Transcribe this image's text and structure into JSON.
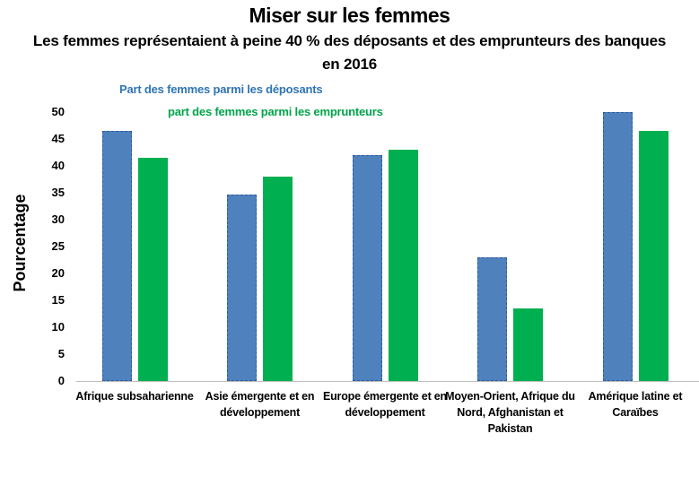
{
  "page": {
    "title": "Miser sur les femmes",
    "subtitle": "Les femmes représentaient  à peine 40 % des déposants et des emprunteurs des banques en 2016"
  },
  "legend": {
    "items": [
      {
        "label": "Part des femmes parmi les déposants",
        "color": "#2E74B5"
      },
      {
        "label": "part des femmes parmi les emprunteurs",
        "color": "#00A44A"
      }
    ]
  },
  "chart_data": {
    "type": "bar",
    "title": "Miser sur les femmes",
    "subtitle": "Les femmes représentaient à peine 40 % des déposants et des emprunteurs des banques en 2016",
    "ylabel": "Pourcentage",
    "xlabel": "",
    "ylim": [
      0,
      50
    ],
    "yticks": [
      0,
      5,
      10,
      15,
      20,
      25,
      30,
      35,
      40,
      45,
      50
    ],
    "grid": false,
    "legend_position": "top-left",
    "axis_line_color": "#BFBFBF",
    "categories": [
      "Afrique subsaharienne",
      "Asie émergente et en développement",
      "Europe émergente et en développement",
      "Moyen-Orient, Afrique du Nord, Afghanistan et Pakistan",
      "Amérique latine et Caraïbes"
    ],
    "series": [
      {
        "name": "Part des femmes parmi les déposants",
        "color": "#4F81BD",
        "border_color": "#2E5C9E",
        "border_style": "dashed",
        "values": [
          46.5,
          34.7,
          42,
          23,
          50
        ]
      },
      {
        "name": "part des femmes parmi les emprunteurs",
        "color": "#00B050",
        "border_color": "",
        "border_style": "none",
        "values": [
          41.5,
          38,
          43,
          13.5,
          46.5
        ]
      }
    ]
  }
}
